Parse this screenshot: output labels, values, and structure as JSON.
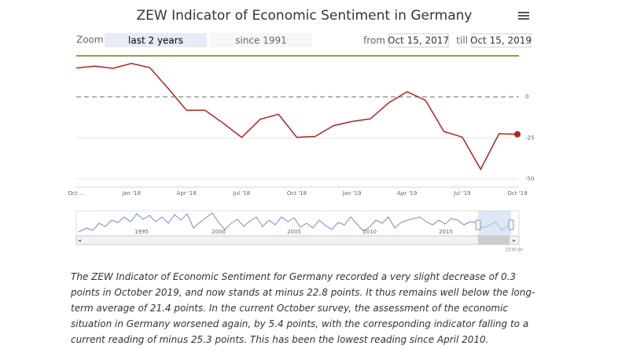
{
  "chart_data": {
    "type": "line",
    "title": "ZEW Indicator of Economic Sentiment in Germany",
    "categories": [
      "Oct ...",
      null,
      null,
      "Jan '18",
      null,
      null,
      "Apr '18",
      null,
      null,
      "Jul '18",
      null,
      null,
      "Oct '18",
      null,
      null,
      "Jan '19",
      null,
      null,
      "Apr '19",
      null,
      null,
      "Jul '19",
      null,
      null,
      "Oct '19"
    ],
    "values": [
      17.6,
      18.7,
      17.4,
      20.4,
      17.8,
      5.1,
      -8.2,
      -8.2,
      -16.1,
      -24.7,
      -13.7,
      -10.6,
      -24.7,
      -24.1,
      -17.5,
      -15.0,
      -13.4,
      -3.6,
      3.1,
      -2.1,
      -21.1,
      -24.5,
      -44.1,
      -22.5,
      -22.8
    ],
    "color": "#b22222",
    "ylim": [
      -55,
      25
    ],
    "yticks": [
      0,
      -25,
      -50
    ],
    "grid": true
  },
  "toolbar": {
    "zoom": "Zoom",
    "buttons": [
      "last 2 years",
      "since 1991"
    ],
    "from": "from",
    "from_date": "Oct 15, 2017",
    "till": "till",
    "till_date": "Oct 15, 2019"
  },
  "navigator": {
    "labels": [
      "1995",
      "2000",
      "2005",
      "2010",
      "2015"
    ]
  },
  "credits": "ZEW.de",
  "description": "The ZEW Indicator of Economic Sentiment for Germany recorded a very slight decrease of 0.3 points in October 2019, and now stands at minus 22.8 points. It thus remains well below the long-term average of 21.4 points. In the current October survey, the assessment of the economic situation in Germany worsened again, by 5.4 points, with the corresponding indicator falling to a current reading of minus 25.3 points. This has been the lowest reading since April 2010."
}
